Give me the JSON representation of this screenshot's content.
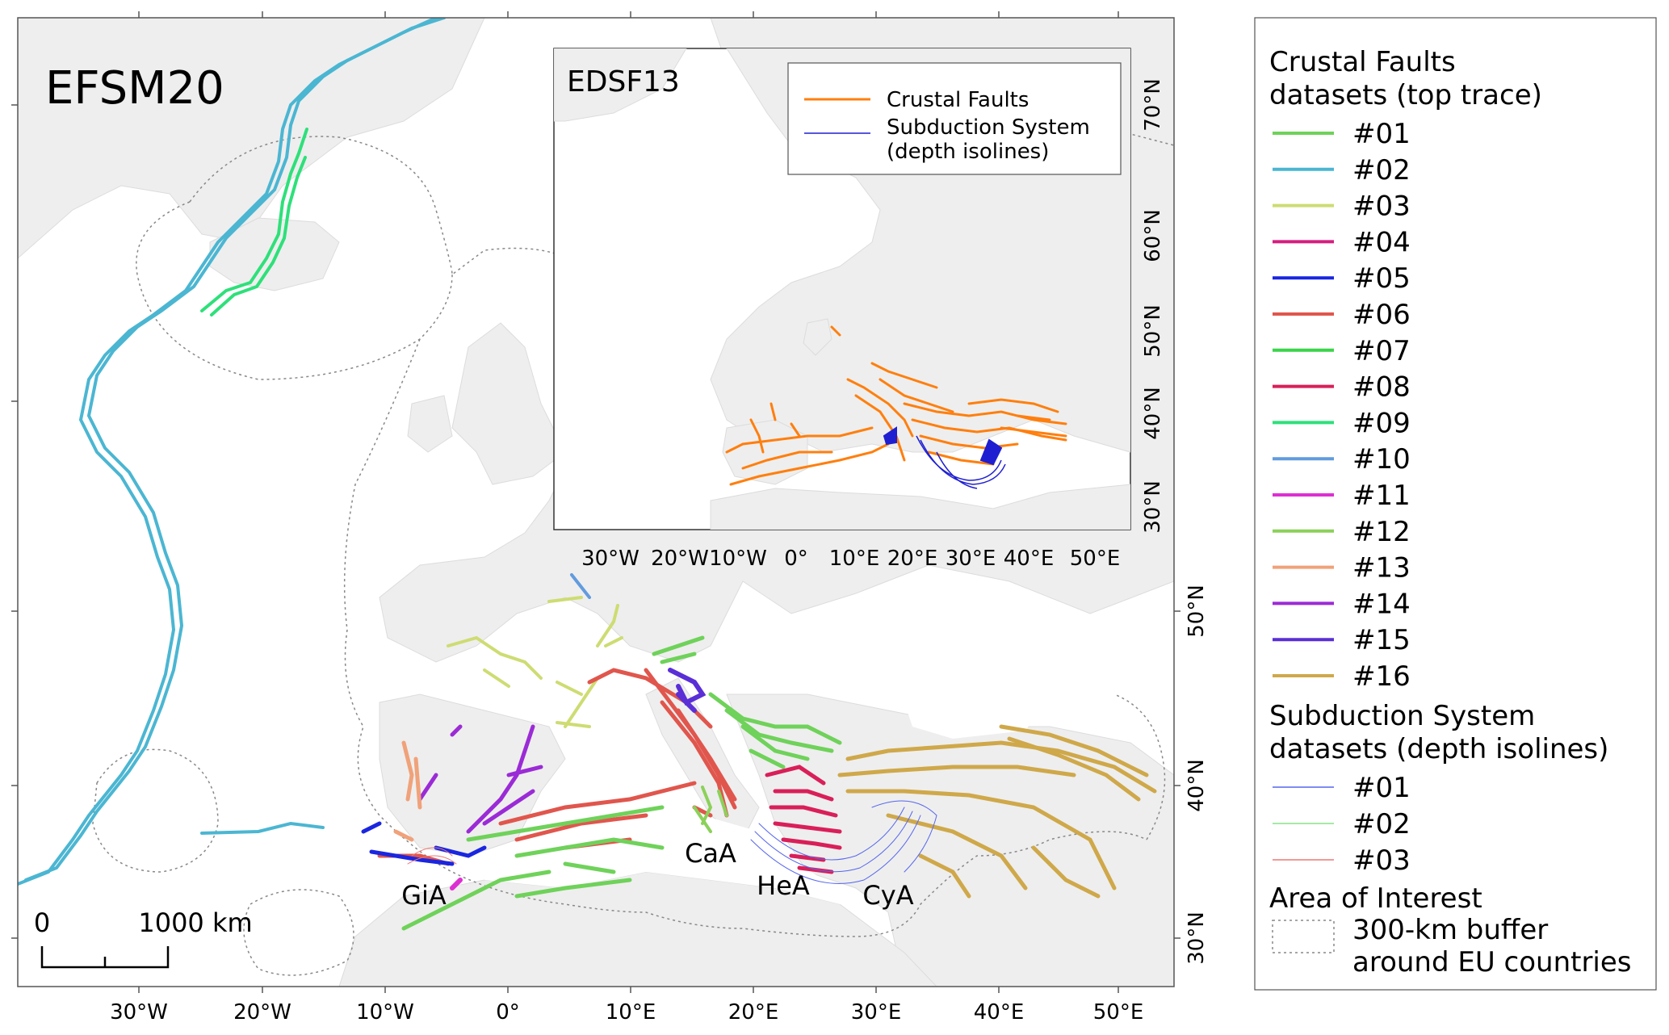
{
  "main_map": {
    "title": "EFSM20",
    "lon_ticks": [
      "30°W",
      "20°W",
      "10°W",
      "0°",
      "10°E",
      "20°E",
      "30°E",
      "40°E",
      "50°E"
    ],
    "lat_ticks": [
      "30°N",
      "40°N",
      "50°N"
    ],
    "region_labels": [
      "GiA",
      "CaA",
      "HeA",
      "CyA"
    ],
    "scale_bar": {
      "start": "0",
      "end": "1000 km"
    }
  },
  "inset_map": {
    "title": "EDSF13",
    "legend": {
      "crustal": "Crustal Faults",
      "subduction_1": "Subduction System",
      "subduction_2": "(depth isolines)"
    },
    "lon_ticks": [
      "30°W",
      "20°W",
      "10°W",
      "0°",
      "10°E",
      "20°E",
      "30°E",
      "40°E",
      "50°E"
    ],
    "lat_ticks": [
      "30°N",
      "40°N",
      "50°N",
      "60°N",
      "70°N"
    ],
    "colors": {
      "crustal": "#ff7f0e",
      "subduction": "#1f1fd1"
    }
  },
  "legend": {
    "crustal_title_1": "Crustal Faults",
    "crustal_title_2": "datasets (top trace)",
    "crustal_items": [
      {
        "label": "#01",
        "color": "#6fd25a"
      },
      {
        "label": "#02",
        "color": "#4bb6d2"
      },
      {
        "label": "#03",
        "color": "#cedc72"
      },
      {
        "label": "#04",
        "color": "#d51e7e"
      },
      {
        "label": "#05",
        "color": "#1a26e0"
      },
      {
        "label": "#06",
        "color": "#e0564d"
      },
      {
        "label": "#07",
        "color": "#3ad44a"
      },
      {
        "label": "#08",
        "color": "#d91f59"
      },
      {
        "label": "#09",
        "color": "#2ee07a"
      },
      {
        "label": "#10",
        "color": "#629bde"
      },
      {
        "label": "#11",
        "color": "#dc2fd2"
      },
      {
        "label": "#12",
        "color": "#8bd15a"
      },
      {
        "label": "#13",
        "color": "#f0a27a"
      },
      {
        "label": "#14",
        "color": "#9b2bd6"
      },
      {
        "label": "#15",
        "color": "#5a2fd6"
      },
      {
        "label": "#16",
        "color": "#cfa84a"
      }
    ],
    "subduction_title_1": "Subduction System",
    "subduction_title_2": "datasets (depth isolines)",
    "subduction_items": [
      {
        "label": "#01",
        "color": "#5566ee"
      },
      {
        "label": "#02",
        "color": "#88e088"
      },
      {
        "label": "#03",
        "color": "#ee7777"
      }
    ],
    "aoi_title": "Area of Interest",
    "aoi_label_1": "300-km buffer",
    "aoi_label_2": "around EU countries"
  }
}
